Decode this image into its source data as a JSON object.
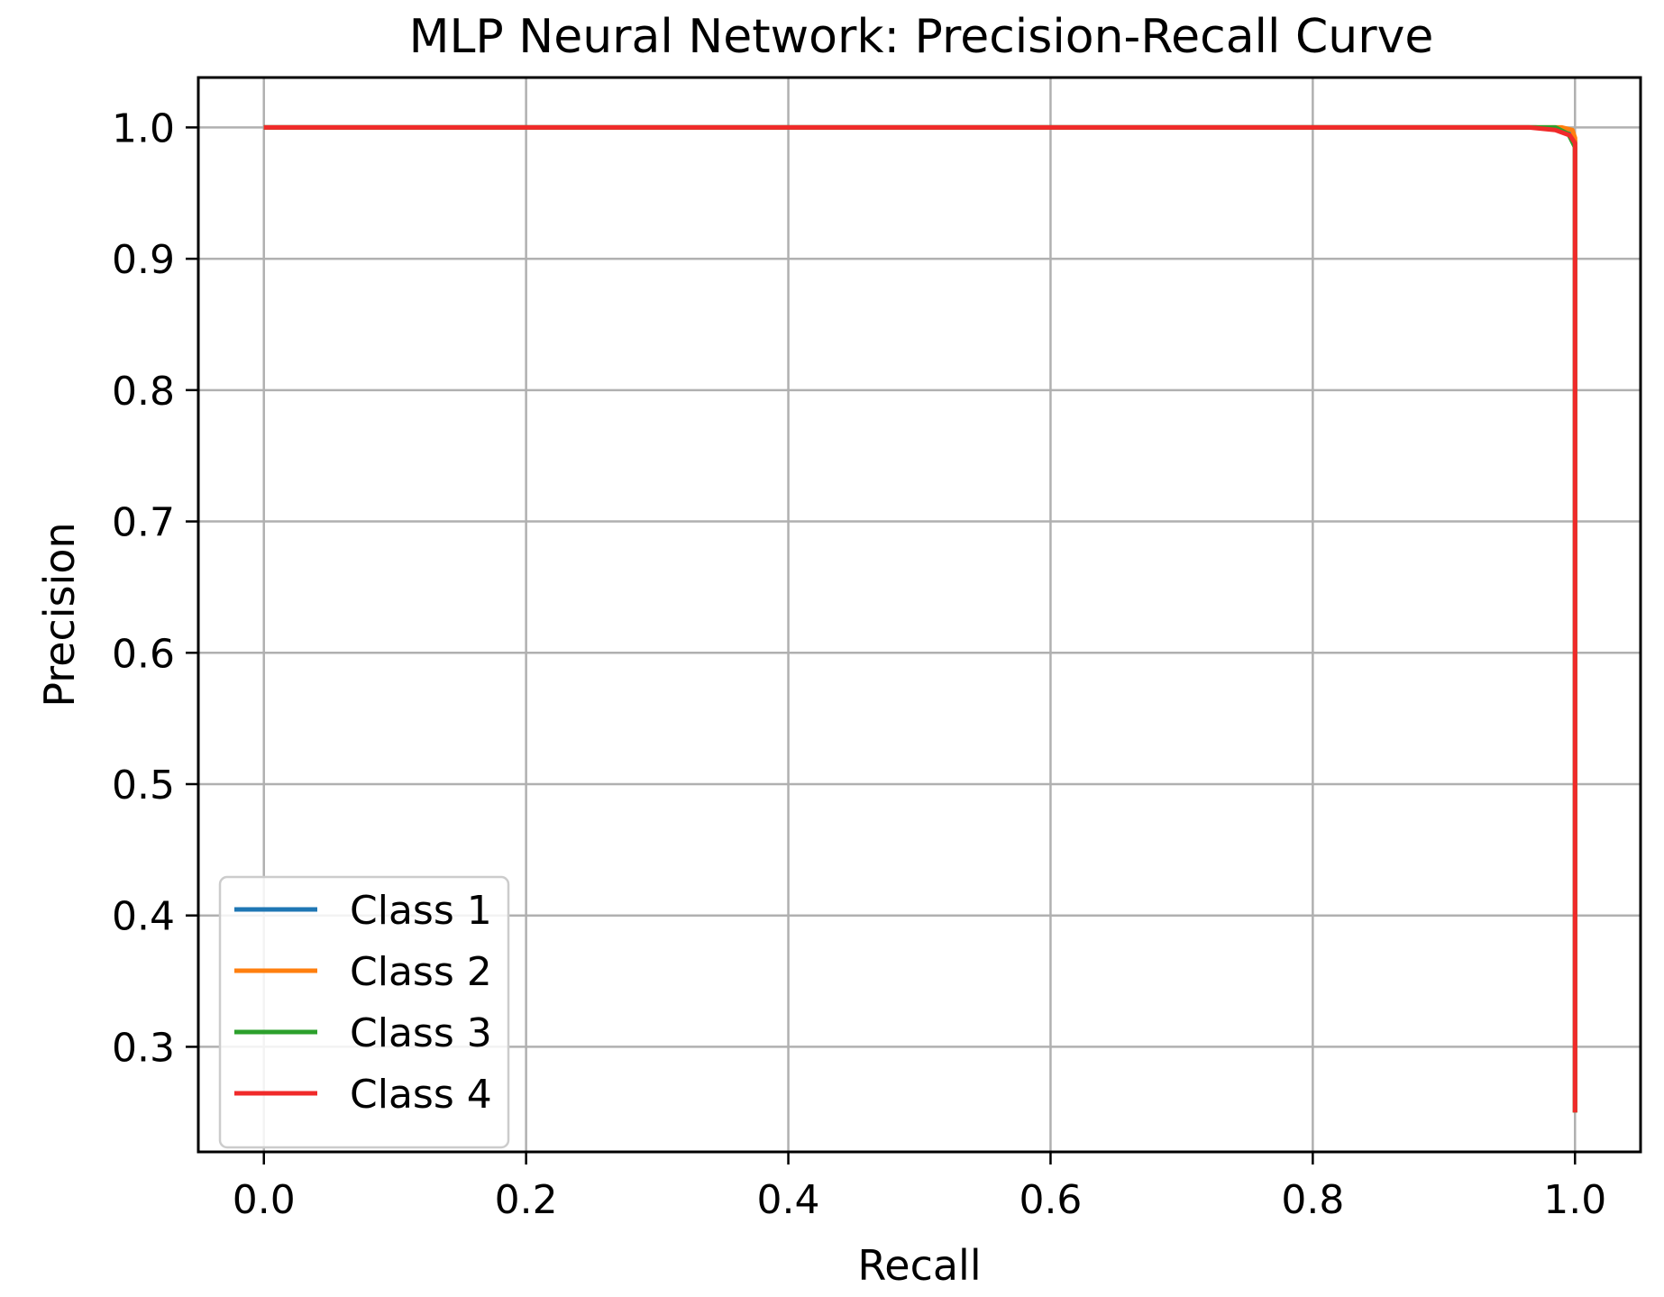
{
  "chart_data": {
    "type": "line",
    "title": "MLP Neural Network: Precision-Recall Curve",
    "xlabel": "Recall",
    "ylabel": "Precision",
    "xlim": [
      -0.05,
      1.05
    ],
    "ylim": [
      0.22,
      1.038
    ],
    "xticks": [
      0.0,
      0.2,
      0.4,
      0.6,
      0.8,
      1.0
    ],
    "xtick_labels": [
      "0.0",
      "0.2",
      "0.4",
      "0.6",
      "0.8",
      "1.0"
    ],
    "yticks": [
      0.3,
      0.4,
      0.5,
      0.6,
      0.7,
      0.8,
      0.9,
      1.0
    ],
    "ytick_labels": [
      "0.3",
      "0.4",
      "0.5",
      "0.6",
      "0.7",
      "0.8",
      "0.9",
      "1.0"
    ],
    "grid": true,
    "legend_position": "lower-left",
    "series": [
      {
        "name": "Class 1",
        "color": "#1f77b4",
        "x": [
          0.0,
          0.97,
          0.985,
          0.995,
          1.0,
          1.0
        ],
        "y": [
          1.0,
          1.0,
          0.999,
          0.996,
          0.99,
          0.25
        ]
      },
      {
        "name": "Class 2",
        "color": "#ff7f0e",
        "x": [
          0.0,
          0.975,
          0.99,
          0.998,
          1.0,
          1.0
        ],
        "y": [
          1.0,
          1.0,
          1.0,
          0.998,
          0.992,
          0.25
        ]
      },
      {
        "name": "Class 3",
        "color": "#2ca02c",
        "x": [
          0.0,
          0.97,
          0.985,
          0.995,
          1.0,
          1.0
        ],
        "y": [
          1.0,
          1.0,
          1.0,
          0.995,
          0.985,
          0.25
        ]
      },
      {
        "name": "Class 4",
        "color": "#f02a2a",
        "x": [
          0.0,
          0.965,
          0.985,
          0.996,
          1.0,
          1.0
        ],
        "y": [
          1.0,
          1.0,
          0.998,
          0.994,
          0.988,
          0.25
        ]
      }
    ]
  }
}
